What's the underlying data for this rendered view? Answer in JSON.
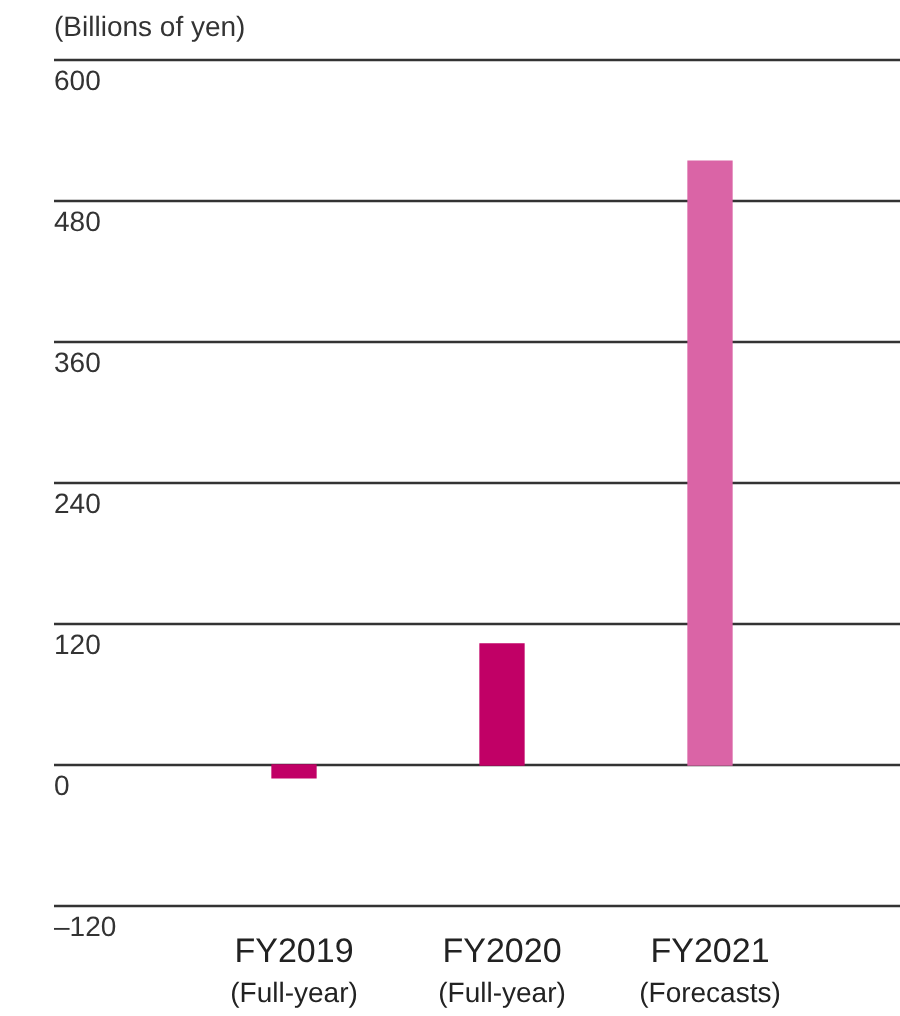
{
  "chart_data": {
    "type": "bar",
    "ylabel": "(Billions of yen)",
    "categories": [
      "FY2019\n(Full-year)",
      "FY2020\n(Full-year)",
      "FY2021\n(Forecasts)"
    ],
    "values": [
      -11,
      103,
      514
    ],
    "colors": [
      "#c10066",
      "#c10066",
      "#da64a6"
    ],
    "ylim": [
      -120,
      600
    ],
    "yticks": [
      {
        "value": -120,
        "label": "–120"
      },
      0,
      120,
      240,
      360,
      480,
      600
    ],
    "grid": "y",
    "legend": false
  }
}
